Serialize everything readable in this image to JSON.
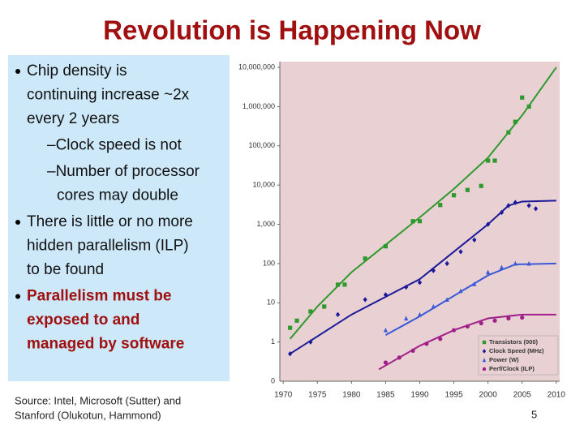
{
  "title": "Revolution is Happening Now",
  "bullets": [
    {
      "level": 1,
      "emphasis": false,
      "lines": [
        "Chip density is",
        "continuing increase ~2x",
        "every 2 years"
      ]
    },
    {
      "level": 2,
      "emphasis": false,
      "lines": [
        "–Clock speed is not"
      ]
    },
    {
      "level": 2,
      "emphasis": false,
      "lines": [
        "–Number of processor",
        "cores may double"
      ]
    },
    {
      "level": 1,
      "emphasis": false,
      "lines": [
        "There is little or no more",
        "hidden parallelism (ILP)",
        "to be found"
      ]
    },
    {
      "level": 1,
      "emphasis": true,
      "lines": [
        "Parallelism must be",
        "exposed to and",
        "managed by software"
      ]
    }
  ],
  "source": [
    "Source: Intel, Microsoft (Sutter) and",
    "Stanford (Olukotun, Hammond)"
  ],
  "page_number": "5",
  "chart_data": {
    "type": "scatter",
    "log_y": true,
    "xlim": [
      1969.5,
      2010.5
    ],
    "xticks": [
      1970,
      1975,
      1980,
      1985,
      1990,
      1995,
      2000,
      2005,
      2010
    ],
    "ylim": [
      0.1,
      14000000
    ],
    "yaxis_floor_label": "0",
    "yticks": [
      1,
      10,
      100,
      {
        "value": 1000,
        "label": "1,000"
      },
      {
        "value": 10000,
        "label": "10,000"
      },
      {
        "value": 100000,
        "label": "100,000"
      },
      {
        "value": 1000000,
        "label": "1,000,000"
      },
      {
        "value": 10000000,
        "label": "10,000,000"
      }
    ],
    "legend": "lower right",
    "series": [
      {
        "name": "Transistors (000)",
        "color": "#2e9a2e",
        "marker": "square",
        "x": [
          1971,
          1972,
          1974,
          1976,
          1978,
          1979,
          1982,
          1985,
          1989,
          1990,
          1993,
          1995,
          1997,
          1999,
          2000,
          2001,
          2003,
          2004,
          2005,
          2006
        ],
        "values": [
          2.3,
          3.5,
          6,
          8,
          29,
          29,
          134,
          275,
          1200,
          1200,
          3100,
          5500,
          7500,
          9500,
          42000,
          42000,
          220000,
          410000,
          1700000,
          1000000
        ],
        "trend_x": [
          1971,
          1975,
          1980,
          1985,
          1990,
          1995,
          2000,
          2005,
          2010
        ],
        "trend": [
          1.2,
          8,
          60,
          300,
          1500,
          8000,
          50000,
          600000,
          10000000
        ]
      },
      {
        "name": "Clock Speed (MHz)",
        "color": "#1a1a9a",
        "marker": "diamond",
        "x": [
          1971,
          1974,
          1978,
          1982,
          1985,
          1988,
          1990,
          1992,
          1994,
          1996,
          1998,
          2000,
          2002,
          2003,
          2004,
          2006,
          2007
        ],
        "values": [
          0.5,
          1,
          5,
          12,
          16,
          25,
          33,
          66,
          100,
          200,
          400,
          1000,
          2000,
          3000,
          3600,
          3000,
          2500
        ],
        "trend_x": [
          1971,
          1980,
          1990,
          1995,
          2000,
          2003,
          2005,
          2010
        ],
        "trend": [
          0.5,
          5,
          40,
          200,
          1000,
          3000,
          3800,
          4000
        ]
      },
      {
        "name": "Power (W)",
        "color": "#3a5ad8",
        "marker": "triangle",
        "x": [
          1985,
          1988,
          1990,
          1992,
          1994,
          1996,
          1998,
          2000,
          2002,
          2004,
          2006
        ],
        "values": [
          2,
          4,
          5,
          8,
          12,
          20,
          30,
          60,
          80,
          100,
          100
        ],
        "trend_x": [
          1985,
          1990,
          1995,
          2000,
          2004,
          2010
        ],
        "trend": [
          1.5,
          4.5,
          15,
          50,
          95,
          100
        ]
      },
      {
        "name": "Perf/Clock (ILP)",
        "color": "#a0208a",
        "marker": "circle",
        "x": [
          1985,
          1987,
          1989,
          1991,
          1993,
          1995,
          1997,
          1999,
          2001,
          2003,
          2005
        ],
        "values": [
          0.3,
          0.4,
          0.6,
          0.9,
          1.2,
          2,
          2.5,
          3,
          3.5,
          4,
          4.2
        ],
        "trend_x": [
          1984,
          1990,
          1995,
          2000,
          2005,
          2010
        ],
        "trend": [
          0.2,
          0.8,
          2,
          4,
          5,
          5
        ]
      }
    ]
  }
}
